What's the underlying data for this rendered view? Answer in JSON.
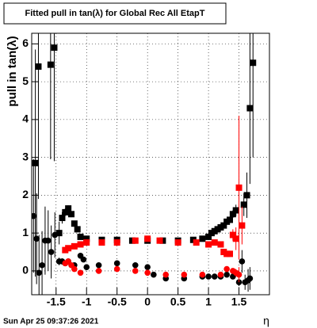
{
  "chart_data": {
    "type": "scatter",
    "title": "Fitted pull in tan(λ) for Global Rec All EtapT",
    "y_label": "pull in tan(λ)",
    "x_label": "η",
    "footer": "Sun Apr 25 09:37:26 2021",
    "xlim": [
      -1.9,
      2.0
    ],
    "ylim": [
      -0.63,
      6.28
    ],
    "xticks": [
      -1.5,
      -1,
      -0.5,
      0,
      0.5,
      1,
      1.5
    ],
    "yticks": [
      0,
      1,
      2,
      3,
      4,
      5,
      6
    ],
    "grid": true,
    "series": [
      {
        "marker": "square",
        "color": "#000000",
        "x": [
          -1.84,
          -1.79,
          -1.59,
          -1.53,
          -1.45,
          -1.4,
          -1.35,
          -1.3,
          -1.25,
          -1.2,
          -1.15,
          -1.1,
          -1.0,
          -0.75,
          -0.5,
          -0.25,
          0,
          0.25,
          0.5,
          0.75,
          0.9,
          1.0,
          1.05,
          1.1,
          1.15,
          1.2,
          1.25,
          1.3,
          1.35,
          1.4,
          1.45,
          1.58,
          1.63,
          1.68,
          1.73
        ],
        "values": [
          2.85,
          5.4,
          5.45,
          5.9,
          1.0,
          1.4,
          1.55,
          1.65,
          1.5,
          1.25,
          1.1,
          0.9,
          0.85,
          0.82,
          0.82,
          0.8,
          0.8,
          0.8,
          0.8,
          0.82,
          0.85,
          0.9,
          1.0,
          1.05,
          1.1,
          1.15,
          1.2,
          1.3,
          1.35,
          1.5,
          1.6,
          1.75,
          2.0,
          4.3,
          5.5
        ],
        "errors": [
          3.0,
          3.5,
          2.5,
          3.0,
          0.3,
          0.15,
          0.1,
          0.08,
          0.08,
          0.06,
          0.05,
          0.04,
          0.03,
          0.03,
          0.03,
          0.03,
          0.03,
          0.03,
          0.03,
          0.03,
          0.03,
          0.04,
          0.04,
          0.05,
          0.05,
          0.06,
          0.06,
          0.07,
          0.08,
          0.1,
          0.15,
          0.3,
          0.6,
          2.0,
          2.5
        ]
      },
      {
        "marker": "circle",
        "color": "#000000",
        "x": [
          -1.87,
          -1.82,
          -1.78,
          -1.73,
          -1.68,
          -1.63,
          -1.58,
          -1.52,
          -1.45,
          -1.4,
          -1.35,
          -1.3,
          -1.2,
          -1.1,
          -1.05,
          -1.0,
          -0.8,
          -0.5,
          -0.2,
          0,
          0.1,
          0.3,
          0.6,
          0.9,
          1.0,
          1.1,
          1.2,
          1.3,
          1.4,
          1.5,
          1.55,
          1.6,
          1.65,
          1.68
        ],
        "values": [
          1.45,
          0.85,
          -0.05,
          0.15,
          0.8,
          0.8,
          0.5,
          0.95,
          0.25,
          0.25,
          0.2,
          0.25,
          0.15,
          0.4,
          0.3,
          0.1,
          0.15,
          0.2,
          0.15,
          0.1,
          -0.1,
          -0.2,
          -0.2,
          -0.15,
          -0.15,
          -0.15,
          -0.15,
          -0.1,
          -0.15,
          -0.3,
          0.25,
          -0.3,
          -0.25,
          -0.2
        ],
        "errors": [
          1.5,
          1.2,
          1.0,
          0.9,
          0.9,
          0.8,
          0.7,
          0.6,
          0.1,
          0.08,
          0.06,
          0.05,
          0.04,
          0.04,
          0.03,
          0.03,
          0.03,
          0.03,
          0.03,
          0.03,
          0.03,
          0.03,
          0.03,
          0.03,
          0.03,
          0.03,
          0.04,
          0.05,
          0.06,
          0.1,
          0.3,
          0.2,
          0.3,
          0.3
        ]
      },
      {
        "marker": "square",
        "color": "#ff0000",
        "x": [
          -1.35,
          -1.3,
          -1.2,
          -1.1,
          -1.0,
          -0.75,
          -0.5,
          -0.2,
          0,
          0.2,
          0.5,
          0.8,
          1.0,
          1.1,
          1.2,
          1.25,
          1.3,
          1.35,
          1.4,
          1.45,
          1.5,
          1.55
        ],
        "values": [
          0.55,
          0.6,
          0.65,
          0.7,
          0.75,
          0.75,
          0.75,
          0.8,
          0.85,
          0.8,
          0.75,
          0.75,
          0.7,
          0.75,
          0.7,
          0.5,
          0.45,
          0.45,
          0.95,
          0.85,
          2.2,
          1.2
        ],
        "errors": [
          0.06,
          0.05,
          0.04,
          0.03,
          0.03,
          0.03,
          0.03,
          0.03,
          0.03,
          0.03,
          0.03,
          0.03,
          0.03,
          0.03,
          0.04,
          0.05,
          0.06,
          0.08,
          0.15,
          0.3,
          1.9,
          0.5
        ]
      },
      {
        "marker": "circle",
        "color": "#ff0000",
        "x": [
          -1.35,
          -1.3,
          -1.25,
          -1.2,
          -1.1,
          -0.8,
          -0.5,
          -0.2,
          0,
          0.3,
          0.6,
          0.9,
          1.2,
          1.3,
          1.4,
          1.45,
          1.5
        ],
        "values": [
          0.2,
          0.25,
          0.15,
          0.05,
          -0.05,
          0.0,
          0.05,
          0.0,
          -0.05,
          -0.1,
          -0.1,
          -0.1,
          -0.1,
          0.05,
          0.0,
          -0.05,
          -0.1
        ],
        "errors": [
          0.05,
          0.04,
          0.04,
          0.03,
          0.03,
          0.03,
          0.03,
          0.03,
          0.03,
          0.03,
          0.03,
          0.03,
          0.04,
          0.05,
          0.06,
          0.1,
          0.2
        ]
      }
    ]
  }
}
